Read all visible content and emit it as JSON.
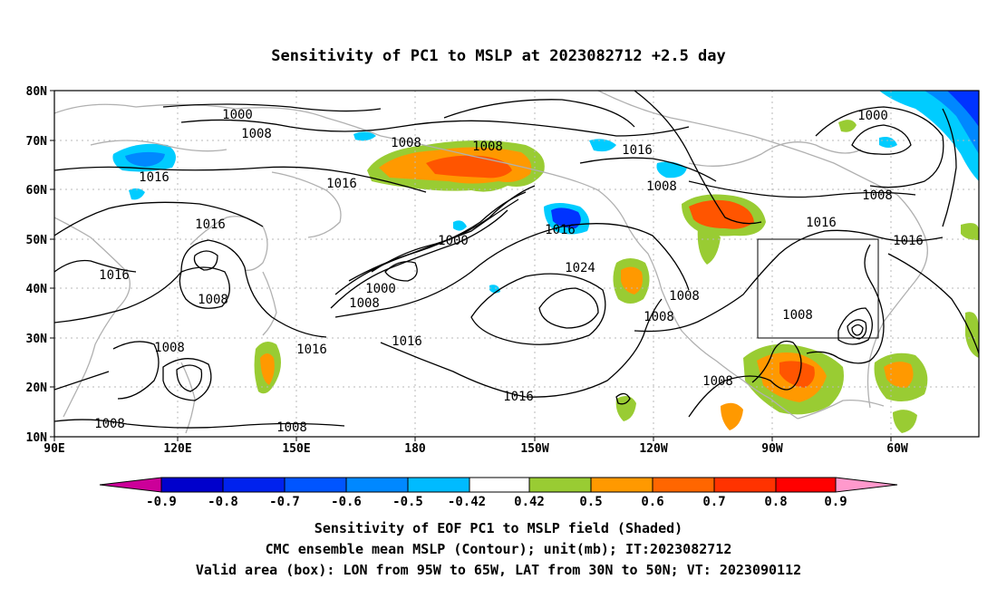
{
  "title": "Sensitivity of PC1 to MSLP at 2023082712 +2.5 day",
  "map": {
    "lat_labels": [
      "80N",
      "70N",
      "60N",
      "50N",
      "40N",
      "30N",
      "20N",
      "10N"
    ],
    "lon_labels": [
      "90E",
      "120E",
      "150E",
      "180",
      "150W",
      "120W",
      "90W",
      "60W"
    ],
    "contour_labels": [
      "1000",
      "1008",
      "1008",
      "1008",
      "1016",
      "1000",
      "1008",
      "1016",
      "1008",
      "1016",
      "1000",
      "1016",
      "1016",
      "1016",
      "1016",
      "1000",
      "1008",
      "1024",
      "1008",
      "1008",
      "1016",
      "1008",
      "1008",
      "1016",
      "1016",
      "1008",
      "1008",
      "1008",
      "1008",
      "1016"
    ],
    "shading_colors": {
      "pos_light": "#99cc33",
      "pos_mid": "#ff9900",
      "pos_high": "#ff5500",
      "neg_light": "#00ccff",
      "neg_mid": "#0099ff",
      "neg_high": "#0033ff"
    }
  },
  "colorbar": {
    "labels": [
      "-0.9",
      "-0.8",
      "-0.7",
      "-0.6",
      "-0.5",
      "-0.42",
      "0.42",
      "0.5",
      "0.6",
      "0.7",
      "0.8",
      "0.9"
    ],
    "colors": [
      "#cc0099",
      "#0000cc",
      "#0022ee",
      "#0055ff",
      "#0088ff",
      "#00bbff",
      "#ffffff",
      "#99cc33",
      "#ff9900",
      "#ff6600",
      "#ff3300",
      "#ff0000",
      "#ff99cc"
    ]
  },
  "footer": {
    "line1": "Sensitivity of EOF PC1 to MSLP field (Shaded)",
    "line2": "CMC ensemble mean MSLP (Contour); unit(mb); IT:2023082712",
    "line3": "Valid area (box): LON from 95W to 65W, LAT from 30N to 50N; VT: 2023090112"
  }
}
